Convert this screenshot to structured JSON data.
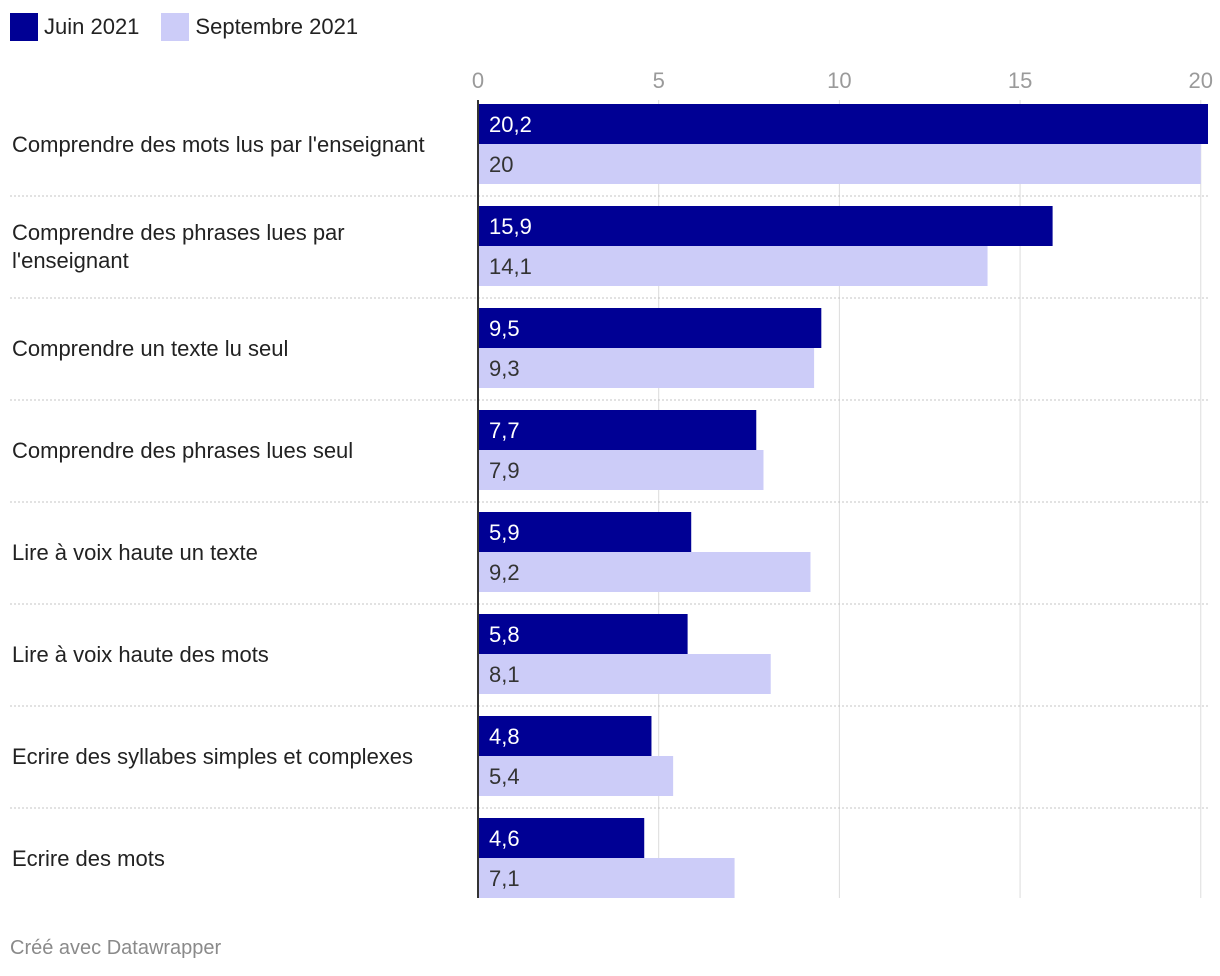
{
  "chart_data": {
    "type": "bar",
    "orientation": "horizontal",
    "categories": [
      [
        "Comprendre des mots lus par l'enseignant"
      ],
      [
        "Comprendre des phrases lues par",
        "l'enseignant"
      ],
      [
        "Comprendre un texte lu seul"
      ],
      [
        "Comprendre des phrases lues seul"
      ],
      [
        "Lire à voix haute un texte"
      ],
      [
        "Lire à voix haute des mots"
      ],
      [
        "Ecrire des syllabes simples et complexes"
      ],
      [
        "Ecrire des mots"
      ]
    ],
    "series": [
      {
        "name": "Juin 2021",
        "color": "#000094",
        "label_color": "#ffffff",
        "values": [
          20.2,
          15.9,
          9.5,
          7.7,
          5.9,
          5.8,
          4.8,
          4.6
        ],
        "labels": [
          "20,2",
          "15,9",
          "9,5",
          "7,7",
          "5,9",
          "5,8",
          "4,8",
          "4,6"
        ]
      },
      {
        "name": "Septembre 2021",
        "color": "#ccccf8",
        "label_color": "#333333",
        "values": [
          20,
          14.1,
          9.3,
          7.9,
          9.2,
          8.1,
          5.4,
          7.1
        ],
        "labels": [
          "20",
          "14,1",
          "9,3",
          "7,9",
          "9,2",
          "8,1",
          "5,4",
          "7,1"
        ]
      }
    ],
    "xticks": [
      0,
      5,
      10,
      15,
      20
    ],
    "xlim": [
      0,
      20.2
    ],
    "grid": true,
    "legend": "top-left"
  },
  "legend": {
    "items": [
      {
        "label": "Juin 2021",
        "color": "#000094"
      },
      {
        "label": "Septembre 2021",
        "color": "#ccccf8"
      }
    ]
  },
  "footer": {
    "credit": "Créé avec Datawrapper"
  }
}
